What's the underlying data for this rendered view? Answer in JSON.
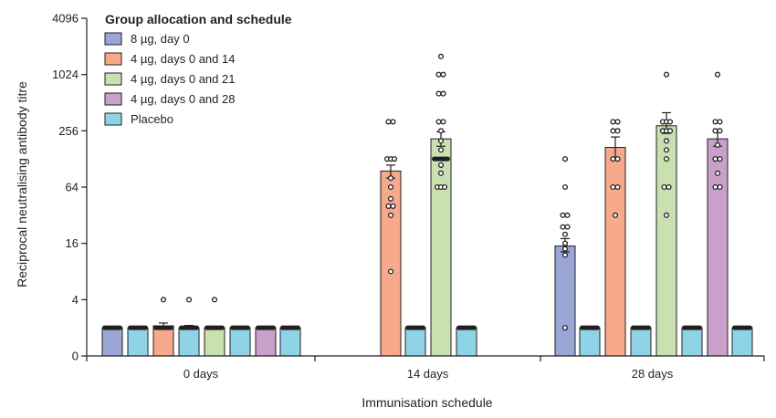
{
  "chart_data": {
    "type": "bar",
    "title": "",
    "xlabel": "Immunisation schedule",
    "ylabel": "Reciprocal neutralising antibody titre",
    "y_scale": "log2",
    "ylim": [
      1,
      4096
    ],
    "y_ticks": [
      1,
      4,
      16,
      64,
      256,
      1024,
      4096
    ],
    "y_tick_labels": [
      "0",
      "4",
      "16",
      "64",
      "256",
      "1024",
      "4096"
    ],
    "grid": false,
    "legend": {
      "title": "Group allocation and schedule",
      "position": "top-left"
    },
    "categories": [
      "0 days",
      "14 days",
      "28 days"
    ],
    "series": [
      {
        "name": "8 µg, day 0",
        "color": "#9aa6d6",
        "values": [
          2,
          null,
          15
        ]
      },
      {
        "name": "4 µg, days 0 and 14",
        "color": "#f7a98c",
        "values": [
          2.1,
          95,
          170
        ]
      },
      {
        "name": "4 µg, days 0 and 21",
        "color": "#c9e0b0",
        "values": [
          2,
          210,
          290
        ]
      },
      {
        "name": "4 µg, days 0 and 28",
        "color": "#c9a0c9",
        "values": [
          2,
          null,
          210
        ]
      },
      {
        "name": "Placebo",
        "color": "#8fd3e6",
        "values": [
          2,
          2,
          2
        ]
      }
    ],
    "bars": [
      {
        "category": "0 days",
        "series": "8 µg, day 0",
        "value": 2,
        "color": "#9aa6d6"
      },
      {
        "category": "0 days",
        "series": "Placebo",
        "value": 2,
        "color": "#8fd3e6"
      },
      {
        "category": "0 days",
        "series": "4 µg, days 0 and 14",
        "value": 2.1,
        "color": "#f7a98c",
        "err_hi": 2.25,
        "outliers": [
          4
        ]
      },
      {
        "category": "0 days",
        "series": "Placebo",
        "value": 2,
        "color": "#8fd3e6",
        "err_hi": 2.12,
        "outliers": [
          4
        ]
      },
      {
        "category": "0 days",
        "series": "4 µg, days 0 and 21",
        "value": 2,
        "color": "#c9e0b0",
        "outliers": [
          4
        ]
      },
      {
        "category": "0 days",
        "series": "Placebo",
        "value": 2,
        "color": "#8fd3e6"
      },
      {
        "category": "0 days",
        "series": "4 µg, days 0 and 28",
        "value": 2,
        "color": "#c9a0c9"
      },
      {
        "category": "0 days",
        "series": "Placebo",
        "value": 2,
        "color": "#8fd3e6"
      },
      {
        "category": "14 days",
        "series": "4 µg, days 0 and 14",
        "value": 95,
        "color": "#f7a98c",
        "err_lo": 80,
        "err_hi": 110,
        "points": [
          8,
          32,
          40,
          40,
          48,
          64,
          80,
          128,
          128,
          128,
          320,
          320
        ]
      },
      {
        "category": "14 days",
        "series": "Placebo",
        "value": 2,
        "color": "#8fd3e6"
      },
      {
        "category": "14 days",
        "series": "4 µg, days 0 and 21",
        "value": 210,
        "color": "#c9e0b0",
        "err_lo": 175,
        "err_hi": 250,
        "points": [
          64,
          64,
          64,
          90,
          110,
          128,
          128,
          128,
          128,
          160,
          200,
          256,
          320,
          320,
          640,
          640,
          1024,
          1024,
          1600
        ]
      },
      {
        "category": "14 days",
        "series": "Placebo",
        "value": 2,
        "color": "#8fd3e6"
      },
      {
        "category": "28 days",
        "series": "8 µg, day 0",
        "value": 15,
        "color": "#9aa6d6",
        "err_lo": 13,
        "err_hi": 18,
        "points": [
          2,
          12,
          14,
          16,
          20,
          24,
          24,
          32,
          32,
          64,
          128
        ]
      },
      {
        "category": "28 days",
        "series": "Placebo",
        "value": 2,
        "color": "#8fd3e6"
      },
      {
        "category": "28 days",
        "series": "4 µg, days 0 and 14",
        "value": 170,
        "color": "#f7a98c",
        "err_lo": 130,
        "err_hi": 220,
        "points": [
          32,
          64,
          64,
          128,
          128,
          256,
          256,
          320,
          320
        ]
      },
      {
        "category": "28 days",
        "series": "Placebo",
        "value": 2,
        "color": "#8fd3e6"
      },
      {
        "category": "28 days",
        "series": "4 µg, days 0 and 21",
        "value": 290,
        "color": "#c9e0b0",
        "err_lo": 240,
        "err_hi": 400,
        "points": [
          32,
          64,
          64,
          128,
          160,
          200,
          256,
          256,
          256,
          320,
          320,
          320,
          1024
        ]
      },
      {
        "category": "28 days",
        "series": "Placebo",
        "value": 2,
        "color": "#8fd3e6"
      },
      {
        "category": "28 days",
        "series": "4 µg, days 0 and 28",
        "value": 210,
        "color": "#c9a0c9",
        "err_lo": 175,
        "err_hi": 250,
        "points": [
          64,
          64,
          90,
          128,
          128,
          180,
          256,
          256,
          320,
          320,
          1024
        ]
      },
      {
        "category": "28 days",
        "series": "Placebo",
        "value": 2,
        "color": "#8fd3e6"
      }
    ]
  }
}
